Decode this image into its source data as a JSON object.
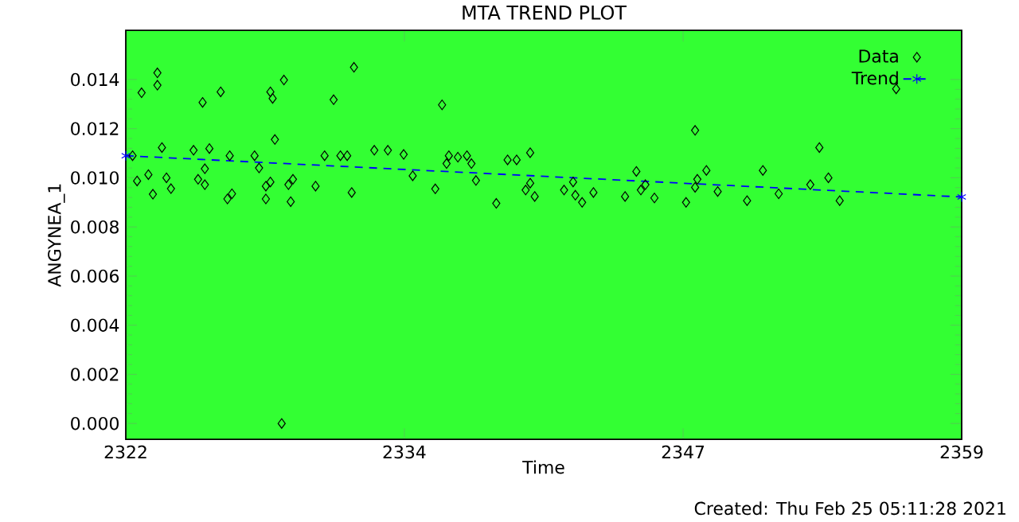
{
  "chart_data": {
    "type": "scatter",
    "title": "MTA TREND PLOT",
    "xlabel": "Time",
    "ylabel": "ANGYNEA_1",
    "xlim": [
      2322,
      2359
    ],
    "ylim": [
      -0.00065,
      0.016
    ],
    "xticks": [
      {
        "value": 2322,
        "label": "2322"
      },
      {
        "value": 2334.33,
        "label": "2334"
      },
      {
        "value": 2346.67,
        "label": "2347"
      },
      {
        "value": 2359,
        "label": "2359"
      }
    ],
    "yticks": [
      {
        "value": 0,
        "label": "0.000"
      },
      {
        "value": 0.002,
        "label": "0.002"
      },
      {
        "value": 0.004,
        "label": "0.004"
      },
      {
        "value": 0.006,
        "label": "0.006"
      },
      {
        "value": 0.008,
        "label": "0.008"
      },
      {
        "value": 0.01,
        "label": "0.010"
      },
      {
        "value": 0.012,
        "label": "0.012"
      },
      {
        "value": 0.014,
        "label": "0.014"
      }
    ],
    "grid": false,
    "legend": "top right",
    "annotations": [
      "Created: Thu Feb 25 05:11:28 2021"
    ],
    "series": [
      {
        "name": "Data",
        "color": "#000000",
        "marker": "diamond",
        "x": [
          2322.3,
          2322.5,
          2322.7,
          2323.0,
          2323.4,
          2323.4,
          2323.2,
          2323.6,
          2323.8,
          2324.0,
          2325.0,
          2325.2,
          2325.4,
          2325.5,
          2325.5,
          2325.7,
          2326.2,
          2326.5,
          2326.7,
          2326.6,
          2327.7,
          2327.9,
          2328.2,
          2328.2,
          2328.4,
          2328.4,
          2328.5,
          2328.6,
          2329.0,
          2329.2,
          2329.4,
          2329.3,
          2330.4,
          2330.8,
          2331.2,
          2331.5,
          2331.8,
          2332.0,
          2332.1,
          2333.0,
          2333.6,
          2334.3,
          2334.7,
          2328.9,
          2336.0,
          2335.7,
          2336.3,
          2336.2,
          2336.7,
          2337.1,
          2337.3,
          2337.5,
          2338.4,
          2338.9,
          2339.3,
          2339.9,
          2339.7,
          2339.9,
          2340.1,
          2341.4,
          2341.8,
          2341.9,
          2342.2,
          2342.7,
          2344.1,
          2344.6,
          2344.8,
          2345.0,
          2345.4,
          2346.8,
          2347.2,
          2347.3,
          2347.7,
          2347.2,
          2348.2,
          2349.5,
          2350.2,
          2350.9,
          2352.3,
          2352.7,
          2353.1,
          2353.6,
          2356.1
        ],
        "values": [
          0.0109,
          0.00987,
          0.01346,
          0.01013,
          0.01427,
          0.01377,
          0.00933,
          0.01123,
          0.01,
          0.00956,
          0.01112,
          0.00994,
          0.01307,
          0.01037,
          0.00972,
          0.01119,
          0.0135,
          0.00914,
          0.00935,
          0.0109,
          0.0109,
          0.0104,
          0.00966,
          0.00914,
          0.00983,
          0.0135,
          0.01323,
          0.01156,
          0.01398,
          0.00972,
          0.00994,
          0.00903,
          0.00966,
          0.0109,
          0.01318,
          0.0109,
          0.0109,
          0.0094,
          0.0145,
          0.01112,
          0.01112,
          0.01095,
          0.01008,
          0.0,
          0.01297,
          0.00955,
          0.0109,
          0.01058,
          0.01084,
          0.0109,
          0.01058,
          0.00989,
          0.00896,
          0.01073,
          0.01073,
          0.01102,
          0.0095,
          0.00978,
          0.00924,
          0.0095,
          0.00983,
          0.00929,
          0.009,
          0.0094,
          0.00924,
          0.01026,
          0.0095,
          0.00972,
          0.00918,
          0.009,
          0.01193,
          0.00994,
          0.0103,
          0.00961,
          0.00944,
          0.00907,
          0.0103,
          0.00935,
          0.00972,
          0.01123,
          0.01,
          0.00907,
          0.01362
        ]
      },
      {
        "name": "Trend",
        "type": "line",
        "color": "#0000ff",
        "marker": "cross",
        "line_style": "dashed",
        "x": [
          2322,
          2359
        ],
        "values": [
          0.0109,
          0.00922
        ]
      }
    ]
  }
}
